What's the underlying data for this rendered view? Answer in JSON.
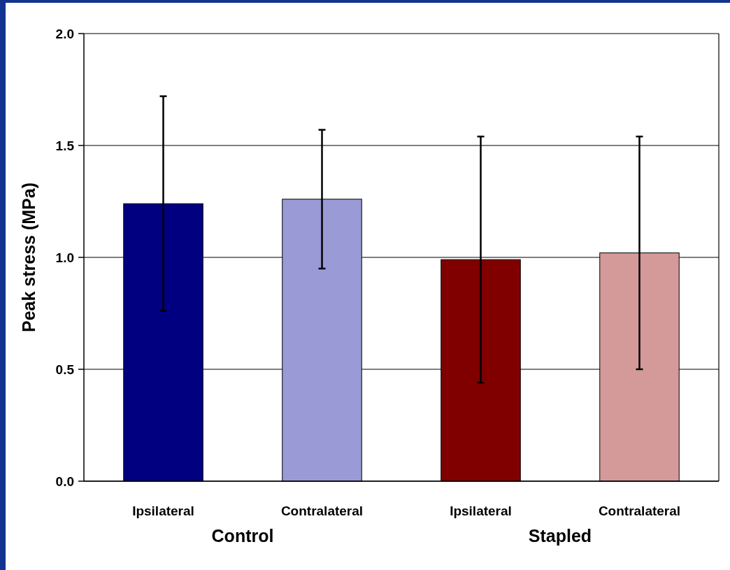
{
  "chart_data": {
    "type": "bar",
    "categories": [
      "Ipsilateral",
      "Contralateral",
      "Ipsilateral",
      "Contralateral"
    ],
    "values": [
      1.24,
      1.26,
      0.99,
      1.02
    ],
    "errors": [
      0.48,
      0.31,
      0.55,
      0.52
    ],
    "colors": [
      "#000080",
      "#9a9ad6",
      "#800000",
      "#d49a9a"
    ],
    "ylabel": "Peak stress (MPa)",
    "annotations": [
      "Control",
      "Stapled"
    ],
    "ylim": [
      0,
      2
    ],
    "yticks": [
      {
        "value": 0,
        "label": "0.0"
      },
      {
        "value": 0.5,
        "label": "0.5"
      },
      {
        "value": 1,
        "label": "1.0"
      },
      {
        "value": 1.5,
        "label": "1.5"
      },
      {
        "value": 2,
        "label": "2.0"
      }
    ],
    "grid": "y"
  }
}
